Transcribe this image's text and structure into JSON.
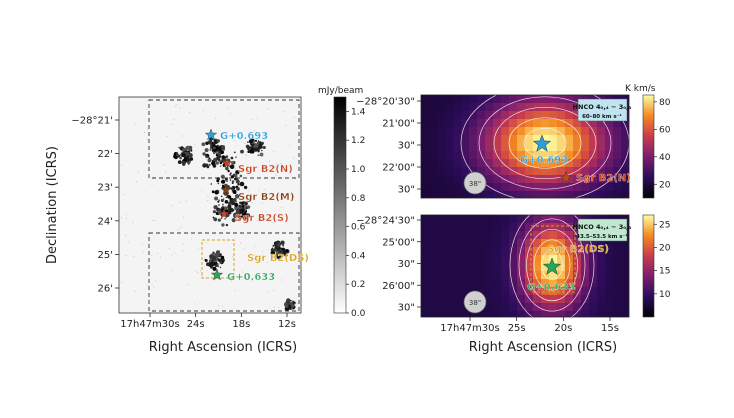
{
  "chart_data": [
    {
      "type": "heatmap",
      "panel": "left",
      "description_units": "mJy/beam",
      "colorbar": {
        "label": "mJy/beam",
        "ticks": [
          "0.0",
          "0.2",
          "0.4",
          "0.6",
          "0.8",
          "1.0",
          "1.2",
          "1.4"
        ],
        "range": [
          0.0,
          1.5
        ],
        "colormap": "grayscale"
      },
      "xlabel": "Right Ascension (ICRS)",
      "ylabel": "Declination (ICRS)",
      "x_ticks": [
        "17h47m30s",
        "24s",
        "18s",
        "12s"
      ],
      "y_ticks": [
        "−28°21'",
        "22'",
        "23'",
        "24'",
        "25'",
        "26'"
      ],
      "sources": [
        {
          "name": "G+0.693",
          "color": "#2b9fd6",
          "marker": "star"
        },
        {
          "name": "Sgr B2(N)",
          "color": "#c8431e",
          "marker": "star"
        },
        {
          "name": "Sgr B2(M)",
          "color": "#8a3c12",
          "marker": "star"
        },
        {
          "name": "Sgr B2(S)",
          "color": "#c8431e",
          "marker": "star"
        },
        {
          "name": "Sgr B2(DS)",
          "color": "#d9a21c",
          "marker": "box"
        },
        {
          "name": "G+0.633",
          "color": "#2aa65a",
          "marker": "star"
        }
      ]
    },
    {
      "type": "heatmap",
      "panel": "right-top",
      "title": "HNCO 4₀,₄ − 3₀,₃",
      "subtitle": "60–80 km s⁻¹",
      "colorbar": {
        "label": "K km/s",
        "ticks": [
          "20",
          "40",
          "60",
          "80"
        ],
        "range": [
          10,
          85
        ],
        "colormap": "inferno"
      },
      "y_ticks": [
        "−28°20'30\"",
        "21'00\"",
        "30\"",
        "22'00\"",
        "30\""
      ],
      "beam": "38\"",
      "sources": [
        {
          "name": "G+0.693",
          "color": "#2b9fd6"
        },
        {
          "name": "Sgr B2(N)",
          "color": "#c8431e"
        }
      ]
    },
    {
      "type": "heatmap",
      "panel": "right-bottom",
      "title": "HNCO 4₀,₄ − 3₀,₃",
      "subtitle": "43.5–53.5 km s⁻¹",
      "colorbar": {
        "label": "",
        "ticks": [
          "10",
          "15",
          "20",
          "25"
        ],
        "range": [
          5,
          27
        ],
        "colormap": "inferno"
      },
      "xlabel": "Right Ascension (ICRS)",
      "x_ticks": [
        "17h47m30s",
        "25s",
        "20s",
        "15s"
      ],
      "y_ticks": [
        "−28°24'30\"",
        "25'00\"",
        "30\"",
        "26'00\"",
        "30\""
      ],
      "beam": "38\"",
      "sources": [
        {
          "name": "Sgr B2(DS)",
          "color": "#d9a21c"
        },
        {
          "name": "G+0.633",
          "color": "#2aa65a"
        }
      ]
    }
  ]
}
